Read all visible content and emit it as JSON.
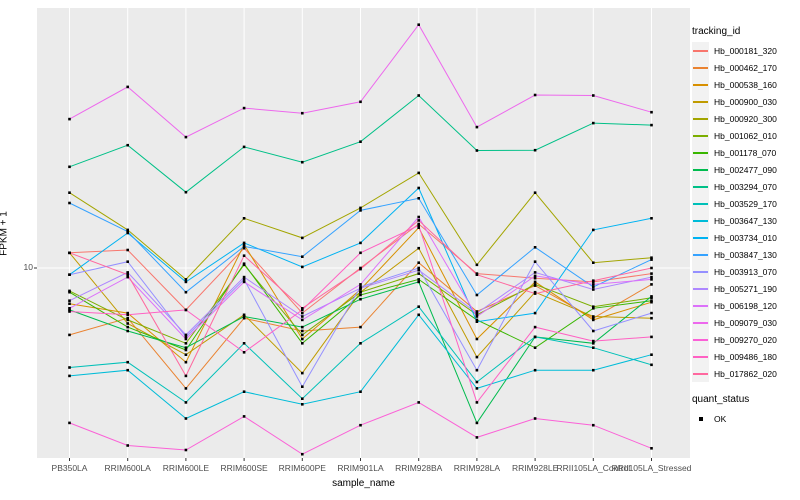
{
  "chart_data": {
    "type": "line",
    "title": "",
    "xlabel": "sample_name",
    "ylabel": "FPKM + 1",
    "y_scale": "log10",
    "y_ticks": [
      10
    ],
    "y_tick_labels": [
      "10"
    ],
    "ylim_approx": [
      1.7,
      100
    ],
    "grid": "white-on-gray, vertical line per category, horizontal line at 10",
    "panel_bg": "#EBEBEB",
    "grid_color": "#FFFFFF",
    "point_color": "#000000",
    "point_shape": "filled-square",
    "axis_text_color": "#4D4D4D",
    "categories": [
      "PB350LA",
      "RRIM600LA",
      "RRIM600LE",
      "RRIM600SE",
      "RRIM600PE",
      "RRIM901LA",
      "RRIM928BA",
      "RRIM928LA",
      "RRIM928LE",
      "RRII105LA_Control",
      "RRII105LA_Stressed"
    ],
    "legend": {
      "title": "tracking_id",
      "position": "right"
    },
    "quant_legend": {
      "title": "quant_status",
      "items": [
        {
          "label": "OK",
          "shape": "square",
          "color": "#000000"
        }
      ]
    },
    "series": [
      {
        "name": "Hb_000181_320",
        "color": "#F8766D",
        "values": [
          11.5,
          11.8,
          6.8,
          12.0,
          6.6,
          10.0,
          15.0,
          9.5,
          9.1,
          8.8,
          9.5
        ]
      },
      {
        "name": "Hb_000462_170",
        "color": "#EA8331",
        "values": [
          5.4,
          6.3,
          3.3,
          6.3,
          5.6,
          5.8,
          10.5,
          6.7,
          8.5,
          6.3,
          8.6
        ]
      },
      {
        "name": "Hb_000538_160",
        "color": "#D89000",
        "values": [
          7.2,
          6.6,
          4.2,
          12.4,
          5.2,
          8.2,
          14.5,
          5.2,
          8.8,
          6.2,
          7.3
        ]
      },
      {
        "name": "Hb_000900_030",
        "color": "#C09B00",
        "values": [
          11.5,
          6.0,
          4.5,
          6.5,
          3.8,
          8.0,
          12.0,
          4.4,
          8.0,
          6.4,
          6.3
        ]
      },
      {
        "name": "Hb_000920_300",
        "color": "#A3A500",
        "values": [
          20.0,
          14.2,
          9.0,
          15.8,
          13.2,
          17.4,
          24.0,
          10.3,
          20.0,
          10.5,
          11.0
        ]
      },
      {
        "name": "Hb_001062_010",
        "color": "#7CAE00",
        "values": [
          8.1,
          6.2,
          5.0,
          10.3,
          5.4,
          8.0,
          9.5,
          6.5,
          8.6,
          7.0,
          7.6
        ]
      },
      {
        "name": "Hb_001178_070",
        "color": "#39B600",
        "values": [
          8.0,
          5.8,
          4.7,
          10.4,
          5.0,
          7.8,
          9.0,
          6.2,
          4.8,
          6.9,
          7.4
        ]
      },
      {
        "name": "Hb_002477_090",
        "color": "#00BB4E",
        "values": [
          6.8,
          5.6,
          4.8,
          6.4,
          5.8,
          7.5,
          8.8,
          2.4,
          5.3,
          5.0,
          7.7
        ]
      },
      {
        "name": "Hb_003294_070",
        "color": "#00C087",
        "values": [
          25.4,
          31.0,
          20.1,
          30.5,
          26.5,
          32.0,
          49.0,
          29.5,
          29.6,
          38.0,
          37.3
        ]
      },
      {
        "name": "Hb_003529_170",
        "color": "#00C0B8",
        "values": [
          4.0,
          4.2,
          2.9,
          5.0,
          3.0,
          5.0,
          7.0,
          3.5,
          5.3,
          4.8,
          4.1
        ]
      },
      {
        "name": "Hb_003647_130",
        "color": "#00BCD8",
        "values": [
          3.7,
          3.9,
          2.5,
          3.2,
          2.85,
          3.2,
          6.5,
          3.3,
          3.9,
          3.9,
          4.5
        ]
      },
      {
        "name": "Hb_003734_010",
        "color": "#00B3F2",
        "values": [
          9.4,
          13.8,
          8.8,
          12.6,
          10.1,
          12.6,
          20.9,
          6.1,
          6.6,
          14.2,
          15.8
        ]
      },
      {
        "name": "Hb_003847_130",
        "color": "#35A2FF",
        "values": [
          18.2,
          14.0,
          8.0,
          12.2,
          11.1,
          17.0,
          19.0,
          7.8,
          12.1,
          8.4,
          10.8
        ]
      },
      {
        "name": "Hb_003913_070",
        "color": "#9590FF",
        "values": [
          9.4,
          10.6,
          5.3,
          9.0,
          3.35,
          8.4,
          10.0,
          3.9,
          10.6,
          5.6,
          6.6
        ]
      },
      {
        "name": "Hb_005271_190",
        "color": "#AE87FF",
        "values": [
          7.4,
          9.6,
          5.4,
          9.2,
          6.4,
          8.3,
          9.8,
          6.6,
          9.6,
          8.2,
          9.2
        ]
      },
      {
        "name": "Hb_006198_120",
        "color": "#DC71FA",
        "values": [
          6.9,
          9.2,
          5.2,
          8.8,
          6.2,
          8.6,
          16.0,
          6.4,
          9.3,
          8.6,
          9.0
        ]
      },
      {
        "name": "Hb_009079_030",
        "color": "#ED68ED",
        "values": [
          39.4,
          53.0,
          33.4,
          43.6,
          41.6,
          46.2,
          94.0,
          36.6,
          49.2,
          49.0,
          42.0
        ]
      },
      {
        "name": "Hb_009270_020",
        "color": "#FB61D7",
        "values": [
          2.4,
          1.95,
          1.87,
          2.55,
          1.8,
          2.35,
          2.9,
          2.1,
          2.5,
          2.35,
          1.9
        ]
      },
      {
        "name": "Hb_009486_180",
        "color": "#FF61C3",
        "values": [
          6.7,
          6.5,
          6.8,
          4.6,
          6.8,
          11.5,
          14.8,
          2.9,
          5.8,
          5.1,
          5.3
        ]
      },
      {
        "name": "Hb_017862_020",
        "color": "#FF689F",
        "values": [
          11.5,
          9.4,
          3.7,
          11.2,
          6.9,
          9.9,
          15.5,
          9.4,
          7.9,
          8.9,
          10.0
        ]
      }
    ]
  }
}
